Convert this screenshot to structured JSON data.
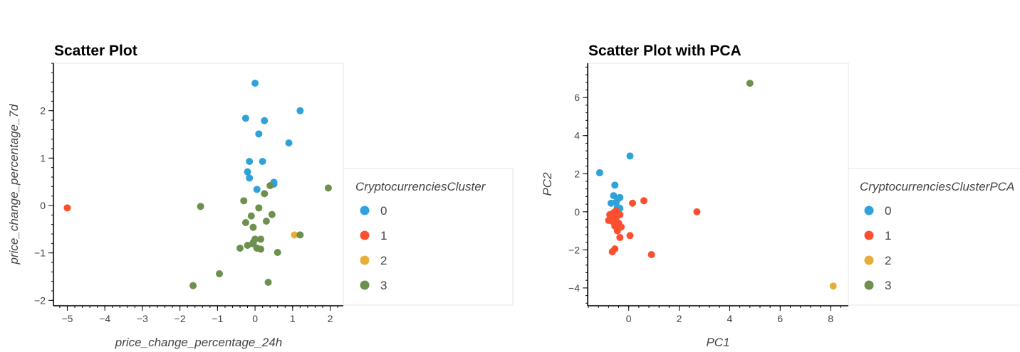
{
  "colors": {
    "cluster_0": "#30a2da",
    "cluster_1": "#fc4f30",
    "cluster_2": "#e5ae38",
    "cluster_3": "#6d904f",
    "frame": "#e5e5e5",
    "axis": "#000000",
    "text": "#444444"
  },
  "chart_data": [
    {
      "type": "scatter",
      "title": "Scatter Plot",
      "xlabel": "price_change_percentage_24h",
      "ylabel": "price_change_percentage_7d",
      "xlim": [
        -5.35,
        2.35
      ],
      "ylim": [
        -2.1,
        3.0
      ],
      "xticks": [
        -5,
        -4,
        -3,
        -2,
        -1,
        0,
        1,
        2
      ],
      "yticks": [
        -2,
        -1,
        0,
        1,
        2
      ],
      "grid": false,
      "legend": {
        "title": "CryptocurrenciesCluster",
        "placement": "right",
        "labels": [
          "0",
          "1",
          "2",
          "3"
        ]
      },
      "series": [
        {
          "name": "0",
          "points": [
            [
              0.0,
              2.58
            ],
            [
              -0.25,
              1.84
            ],
            [
              0.25,
              1.79
            ],
            [
              1.2,
              2.0
            ],
            [
              0.1,
              1.51
            ],
            [
              0.9,
              1.32
            ],
            [
              -0.15,
              0.93
            ],
            [
              0.2,
              0.93
            ],
            [
              -0.2,
              0.71
            ],
            [
              -0.15,
              0.58
            ],
            [
              0.5,
              0.49
            ],
            [
              0.5,
              0.45
            ],
            [
              0.05,
              0.34
            ]
          ]
        },
        {
          "name": "1",
          "points": [
            [
              -5.0,
              -0.05
            ]
          ]
        },
        {
          "name": "2",
          "points": [
            [
              1.05,
              -0.62
            ]
          ]
        },
        {
          "name": "3",
          "points": [
            [
              0.4,
              0.42
            ],
            [
              1.95,
              0.37
            ],
            [
              0.25,
              0.25
            ],
            [
              -0.3,
              0.1
            ],
            [
              -1.45,
              -0.02
            ],
            [
              0.1,
              -0.05
            ],
            [
              -0.1,
              -0.22
            ],
            [
              0.45,
              -0.19
            ],
            [
              -0.25,
              -0.36
            ],
            [
              0.3,
              -0.33
            ],
            [
              -0.05,
              -0.46
            ],
            [
              0.0,
              -0.71
            ],
            [
              0.15,
              -0.71
            ],
            [
              1.2,
              -0.62
            ],
            [
              -0.05,
              -0.78
            ],
            [
              -0.05,
              -0.81
            ],
            [
              -0.2,
              -0.84
            ],
            [
              -0.4,
              -0.9
            ],
            [
              0.05,
              -0.9
            ],
            [
              0.15,
              -0.92
            ],
            [
              0.6,
              -0.99
            ],
            [
              -0.95,
              -1.44
            ],
            [
              0.35,
              -1.62
            ],
            [
              -1.65,
              -1.69
            ]
          ]
        }
      ]
    },
    {
      "type": "scatter",
      "title": "Scatter Plot with PCA",
      "xlabel": "PC1",
      "ylabel": "PC2",
      "xlim": [
        -1.6,
        8.7
      ],
      "ylim": [
        -4.9,
        7.8
      ],
      "xticks": [
        0,
        2,
        4,
        6,
        8
      ],
      "yticks": [
        -4,
        -2,
        0,
        2,
        4,
        6
      ],
      "grid": false,
      "legend": {
        "title": "CryptocurrenciesClusterPCA",
        "placement": "right",
        "labels": [
          "0",
          "1",
          "2",
          "3"
        ]
      },
      "series": [
        {
          "name": "0",
          "points": [
            [
              -1.15,
              2.05
            ],
            [
              0.05,
              2.93
            ],
            [
              -0.55,
              1.4
            ],
            [
              -0.6,
              0.85
            ],
            [
              -0.35,
              0.75
            ],
            [
              -0.4,
              0.7
            ],
            [
              -0.7,
              0.45
            ],
            [
              -0.5,
              0.5
            ],
            [
              -0.45,
              0.25
            ],
            [
              -0.35,
              0.18
            ]
          ]
        },
        {
          "name": "1",
          "points": [
            [
              -0.5,
              0.05
            ],
            [
              -0.75,
              -0.15
            ],
            [
              -0.6,
              -0.05
            ],
            [
              -0.35,
              -0.15
            ],
            [
              -0.45,
              -0.2
            ],
            [
              -0.7,
              -0.3
            ],
            [
              -0.55,
              -0.35
            ],
            [
              -0.8,
              -0.45
            ],
            [
              -0.65,
              -0.5
            ],
            [
              -0.5,
              -0.45
            ],
            [
              -0.4,
              -0.6
            ],
            [
              -0.55,
              -0.75
            ],
            [
              -0.3,
              -0.8
            ],
            [
              -0.45,
              -1.0
            ],
            [
              -0.35,
              -1.35
            ],
            [
              0.05,
              -1.25
            ],
            [
              0.15,
              0.45
            ],
            [
              0.6,
              0.58
            ],
            [
              2.7,
              0.0
            ],
            [
              0.9,
              -2.25
            ],
            [
              -0.55,
              -1.95
            ],
            [
              -0.65,
              -2.1
            ]
          ]
        },
        {
          "name": "2",
          "points": [
            [
              8.1,
              -3.9
            ]
          ]
        },
        {
          "name": "3",
          "points": [
            [
              4.8,
              6.75
            ]
          ]
        }
      ]
    }
  ]
}
